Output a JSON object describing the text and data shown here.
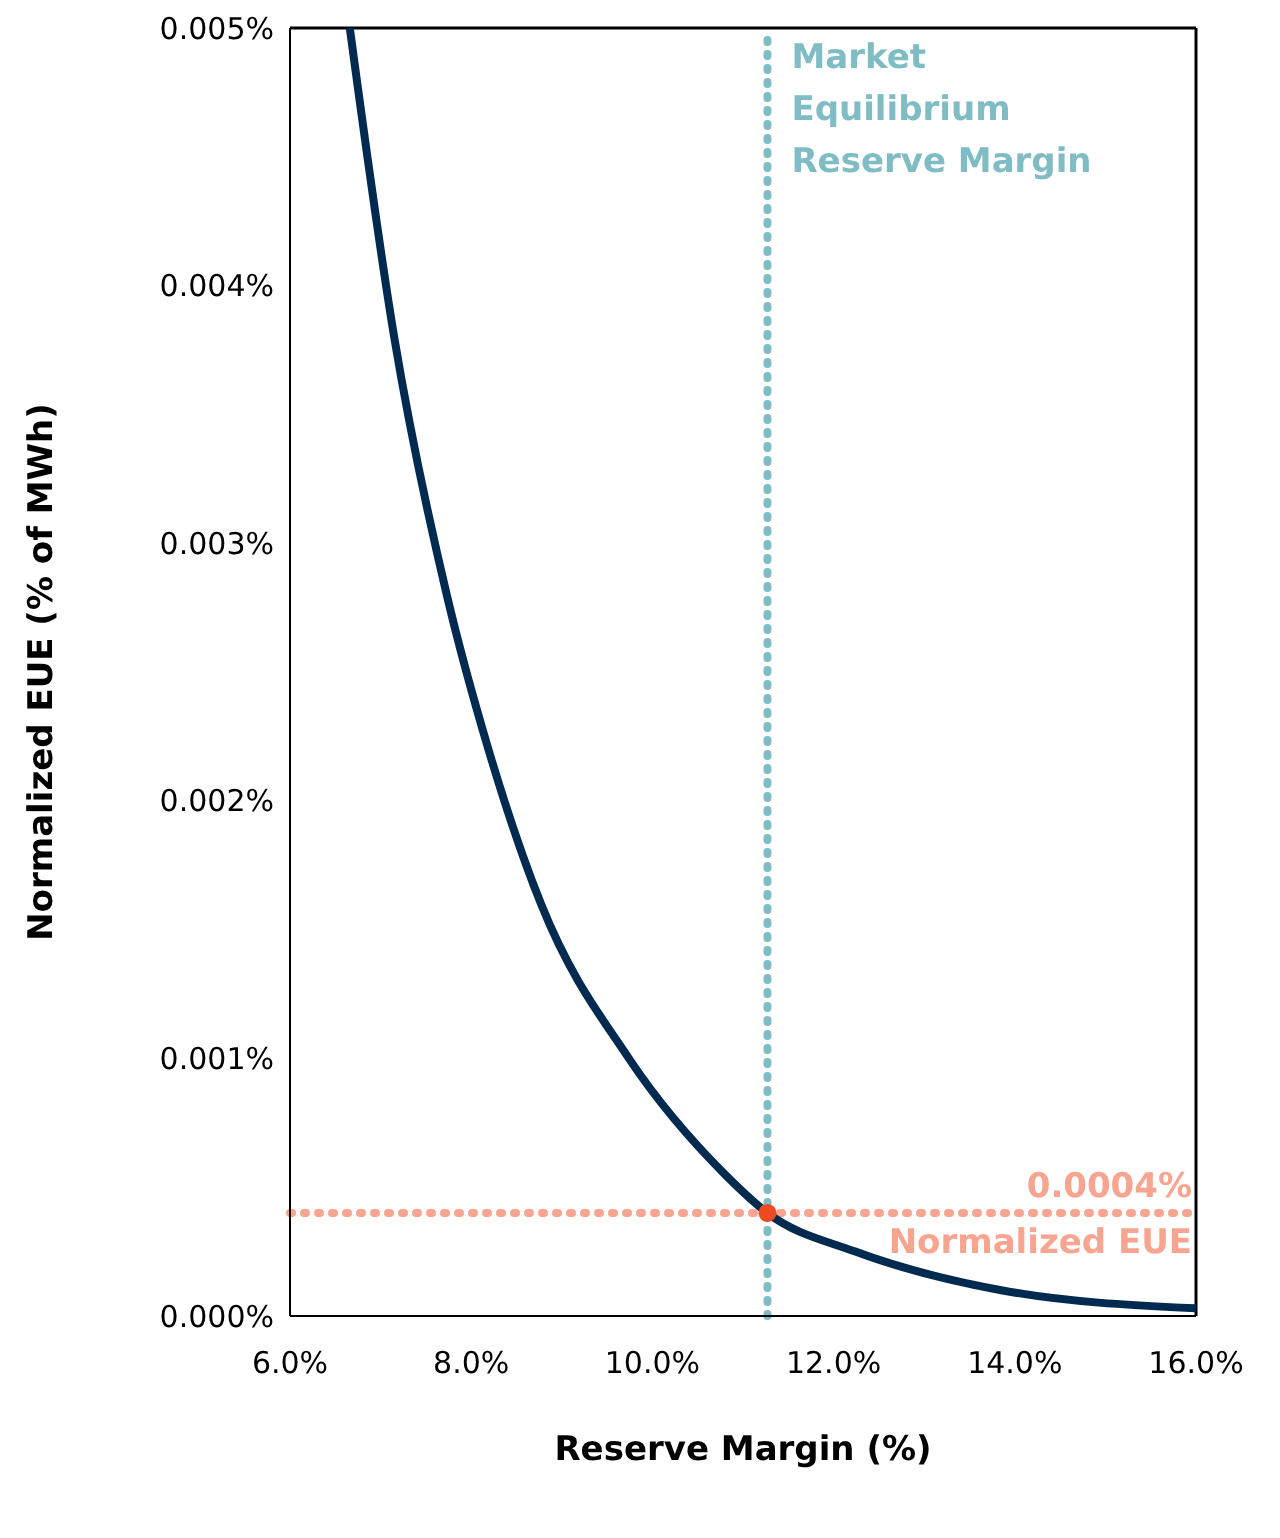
{
  "chart_data": {
    "type": "line",
    "xlabel": "Reserve Margin (%)",
    "ylabel": "Normalized EUE (% of MWh)",
    "xlim": [
      6,
      16
    ],
    "xticks": [
      {
        "value": 6,
        "label": "6.0%"
      },
      {
        "value": 8,
        "label": "8.0%"
      },
      {
        "value": 10,
        "label": "10.0%"
      },
      {
        "value": 12,
        "label": "12.0%"
      },
      {
        "value": 14,
        "label": "14.0%"
      },
      {
        "value": 16,
        "label": "16.0%"
      }
    ],
    "ylim": [
      0,
      0.005
    ],
    "yticks": [
      {
        "value": 0,
        "label": "0.000%"
      },
      {
        "value": 0.001,
        "label": "0.001%"
      },
      {
        "value": 0.002,
        "label": "0.002%"
      },
      {
        "value": 0.003,
        "label": "0.003%"
      },
      {
        "value": 0.004,
        "label": "0.004%"
      },
      {
        "value": 0.005,
        "label": "0.005%"
      }
    ],
    "grid": false,
    "series": [
      {
        "color": "#002a50",
        "marker": "none",
        "line_style": "solid",
        "x": [
          6.66,
          7.15,
          7.73,
          8.19,
          8.77,
          9.74,
          10.8,
          11.27,
          12.24,
          13.85,
          16
        ],
        "values": [
          0.005,
          0.0038,
          0.0028,
          0.0022,
          0.0016,
          0.001,
          0.00055,
          0.0004,
          0.00025,
          0.0001,
          3e-05
        ]
      },
      {
        "type": "scatter",
        "color": "#f04a23",
        "marker": "circle",
        "x": [
          11.27
        ],
        "values": [
          0.0004
        ]
      }
    ],
    "ref_lines": [
      {
        "axis": "x",
        "value": 11.27,
        "label": "Market Equilibrium Reserve Margin",
        "color": "#7fbcc4",
        "line_style": "dotted"
      },
      {
        "axis": "y",
        "value": 0.0004,
        "label": "0.0004% Normalized EUE",
        "color": "#f7a590",
        "line_style": "dotted"
      }
    ]
  }
}
